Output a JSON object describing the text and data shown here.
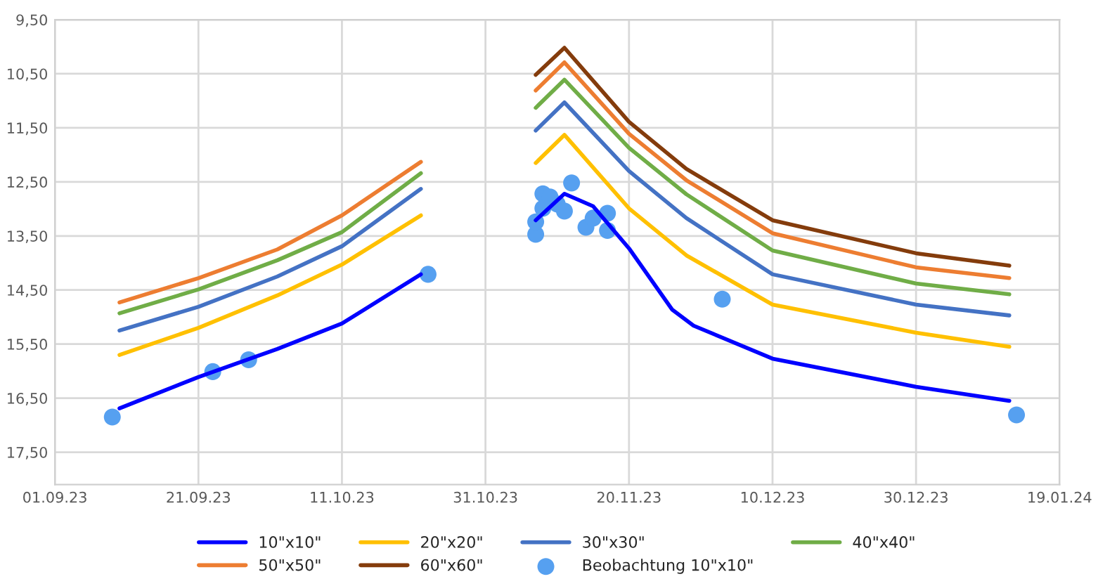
{
  "chart_data": {
    "type": "line",
    "x": [
      "2023-09-10",
      "2023-09-21",
      "2023-10-02",
      "2023-10-11",
      "2023-10-22",
      "2023-10-30",
      "2023-11-07",
      "2023-11-11",
      "2023-11-20",
      "2023-11-28",
      "2023-12-10",
      "2023-12-30",
      "2024-01-12"
    ],
    "series": [
      {
        "name": "10\"x10\"",
        "color": "#0000ff",
        "x": [
          "2023-09-10",
          "2023-09-21",
          "2023-10-02",
          "2023-10-11",
          "2023-10-22",
          "2023-10-30",
          "2023-11-07",
          "2023-11-11",
          "2023-11-15",
          "2023-11-20",
          "2023-11-26",
          "2023-11-29",
          "2023-12-10",
          "2023-12-30",
          "2024-01-12"
        ],
        "values": [
          16.69,
          16.11,
          15.59,
          15.12,
          14.21,
          null,
          13.21,
          12.72,
          12.95,
          13.73,
          14.86,
          15.16,
          15.77,
          16.29,
          16.55
        ]
      },
      {
        "name": "20\"x20\"",
        "color": "#ffc000",
        "values": [
          15.7,
          15.2,
          14.6,
          14.03,
          13.12,
          null,
          12.15,
          11.63,
          12.99,
          13.86,
          14.77,
          15.29,
          15.55
        ]
      },
      {
        "name": "30\"x30\"",
        "color": "#4472c4",
        "values": [
          15.25,
          14.81,
          14.25,
          13.69,
          12.63,
          null,
          11.55,
          11.03,
          12.3,
          13.17,
          14.21,
          14.77,
          14.97
        ]
      },
      {
        "name": "40\"x40\"",
        "color": "#70ad47",
        "values": [
          14.93,
          14.49,
          13.95,
          13.43,
          12.34,
          null,
          11.13,
          10.61,
          11.87,
          12.73,
          13.77,
          14.38,
          14.58
        ]
      },
      {
        "name": "50\"x50\"",
        "color": "#ed7d31",
        "values": [
          14.73,
          14.28,
          13.75,
          13.12,
          12.13,
          null,
          10.81,
          10.29,
          11.61,
          12.47,
          13.45,
          14.08,
          14.28
        ]
      },
      {
        "name": "60\"x60\"",
        "color": "#843c0c",
        "values": [
          null,
          null,
          null,
          null,
          null,
          null,
          10.52,
          10.02,
          11.39,
          12.26,
          13.21,
          13.82,
          14.05
        ]
      },
      {
        "name": "Beobachtung 10\"x10\"",
        "type": "scatter",
        "color": "#56a0f0",
        "x": [
          "2023-09-09",
          "2023-09-23",
          "2023-09-28",
          "2023-10-23",
          "2023-11-07",
          "2023-11-07",
          "2023-11-08",
          "2023-11-08",
          "2023-11-09",
          "2023-11-10",
          "2023-11-11",
          "2023-11-12",
          "2023-11-14",
          "2023-11-15",
          "2023-11-17",
          "2023-11-17",
          "2023-12-03",
          "2024-01-13"
        ],
        "values": [
          16.85,
          16.01,
          15.79,
          14.21,
          13.47,
          13.24,
          12.99,
          12.72,
          12.78,
          12.91,
          13.04,
          12.52,
          13.34,
          13.17,
          13.08,
          13.4,
          14.67,
          16.81
        ]
      }
    ],
    "xlim": [
      "2023-09-01",
      "2024-01-19"
    ],
    "xticks": [
      {
        "value": "2023-09-01",
        "label": "01.09.23"
      },
      {
        "value": "2023-09-21",
        "label": "21.09.23"
      },
      {
        "value": "2023-10-11",
        "label": "11.10.23"
      },
      {
        "value": "2023-10-31",
        "label": "31.10.23"
      },
      {
        "value": "2023-11-20",
        "label": "20.11.23"
      },
      {
        "value": "2023-12-10",
        "label": "10.12.23"
      },
      {
        "value": "2023-12-30",
        "label": "30.12.23"
      },
      {
        "value": "2024-01-19",
        "label": "19.01.24"
      }
    ],
    "ylim": [
      18.1,
      9.5
    ],
    "yticks": [
      {
        "value": 9.5,
        "label": "9,50"
      },
      {
        "value": 10.5,
        "label": "10,50"
      },
      {
        "value": 11.5,
        "label": "11,50"
      },
      {
        "value": 12.5,
        "label": "12,50"
      },
      {
        "value": 13.5,
        "label": "13,50"
      },
      {
        "value": 14.5,
        "label": "14,50"
      },
      {
        "value": 15.5,
        "label": "15,50"
      },
      {
        "value": 16.5,
        "label": "16,50"
      },
      {
        "value": 17.5,
        "label": "17,50"
      }
    ],
    "grid": true,
    "legend": "bottom",
    "line_style": "solid"
  }
}
